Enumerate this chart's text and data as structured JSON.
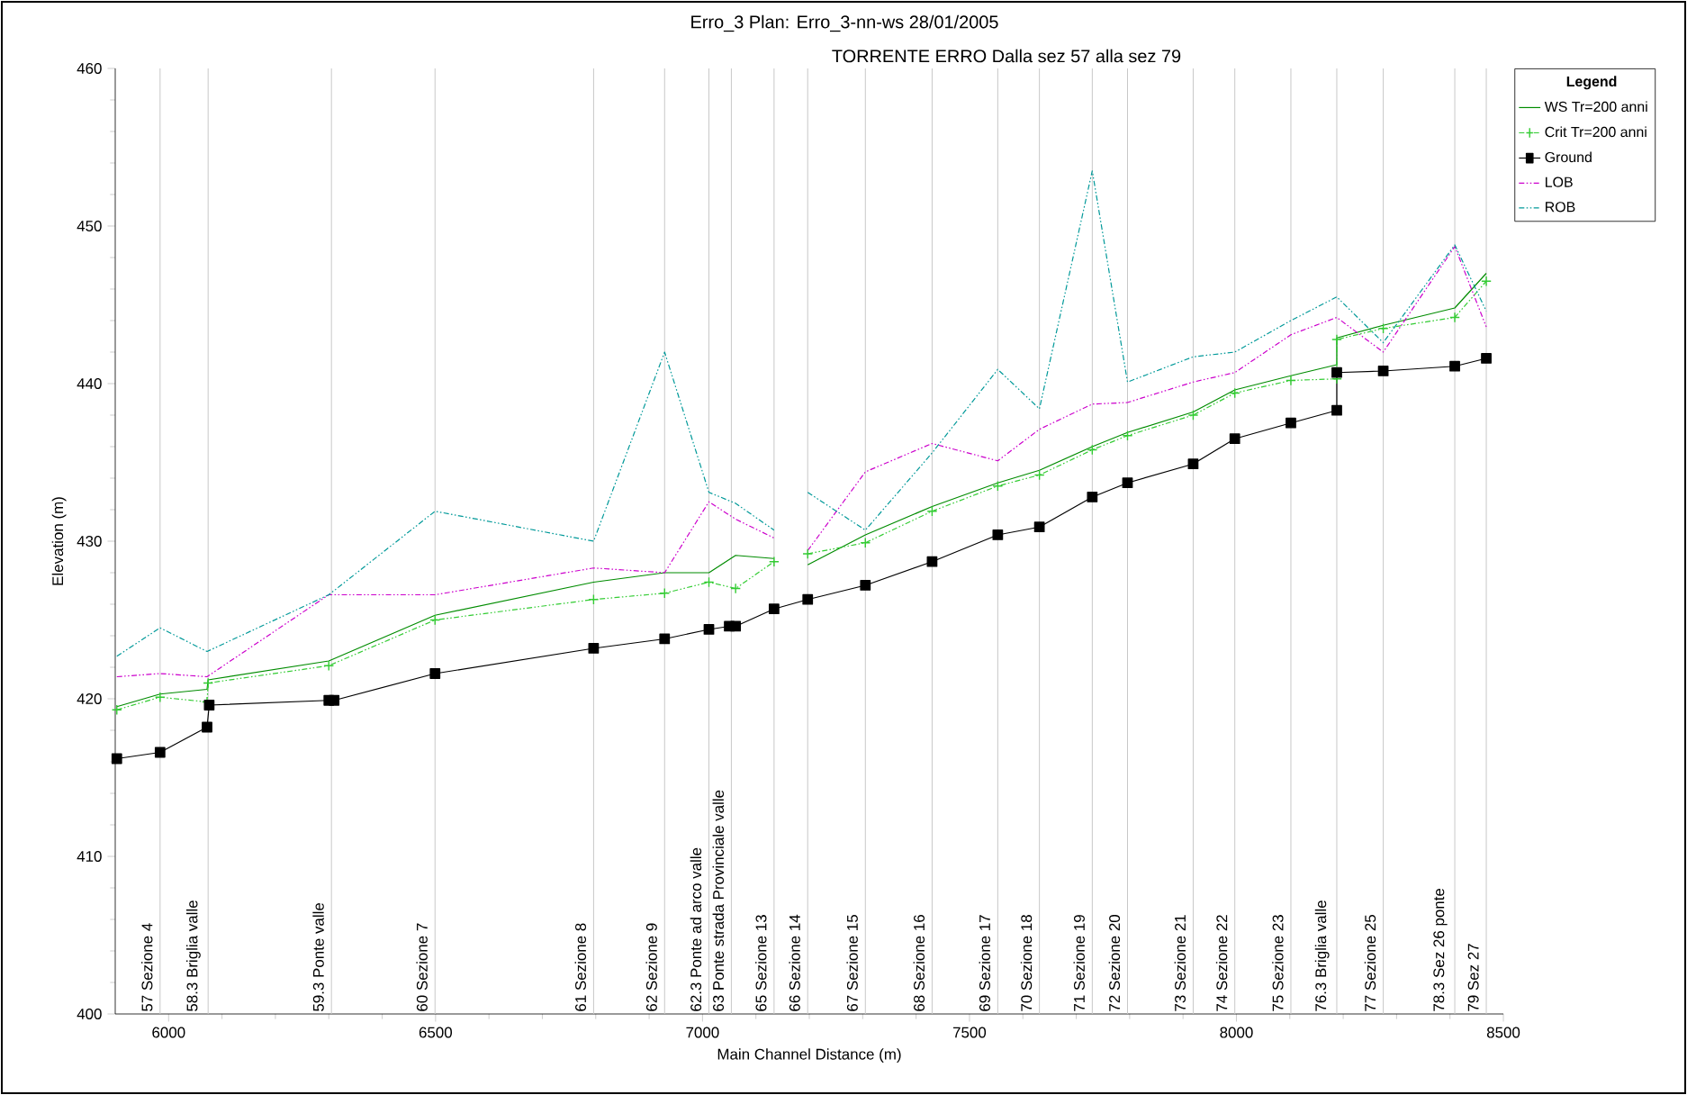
{
  "chart_data": {
    "type": "line",
    "title": "Erro_3       Plan: Erro_3-nn-ws    28/01/2005",
    "subtitle": "TORRENTE ERRO Dalla sez 57 alla sez 79",
    "xlabel": "Main Channel Distance (m)",
    "ylabel": "Elevation (m)",
    "legend_title": "Legend",
    "legend": "top right",
    "xlim": [
      5900,
      8500
    ],
    "ylim": [
      400,
      460
    ],
    "xticks": [
      6000,
      6500,
      7000,
      7500,
      8000,
      8500
    ],
    "yticks": [
      400,
      410,
      420,
      430,
      440,
      450,
      460
    ],
    "series": [
      {
        "name": "WS  Tr=200 anni",
        "color": "#008c00",
        "line_style": "solid",
        "marker": "none",
        "x": [
          5903,
          5984,
          6072,
          6074,
          6300,
          6499,
          6796,
          6929,
          7012,
          7062,
          7134,
          7160,
          7197,
          7305,
          7430,
          7553,
          7631,
          7730,
          7796,
          7919,
          7997,
          8102,
          8188,
          8188,
          8275,
          8409,
          8468
        ],
        "values": [
          419.5,
          420.3,
          420.6,
          421.2,
          422.4,
          425.3,
          427.4,
          428.0,
          428.0,
          429.1,
          428.9,
          null,
          428.5,
          430.4,
          432.2,
          433.7,
          434.5,
          436.0,
          436.9,
          438.2,
          439.6,
          440.5,
          441.2,
          442.9,
          443.7,
          444.8,
          447.0
        ]
      },
      {
        "name": "Crit  Tr=200 anni",
        "color": "#33cc33",
        "line_style": "dashed",
        "marker": "cross",
        "x": [
          5903,
          5984,
          6072,
          6074,
          6300,
          6499,
          6796,
          6929,
          7012,
          7062,
          7134,
          7160,
          7197,
          7305,
          7430,
          7553,
          7631,
          7730,
          7796,
          7919,
          7997,
          8102,
          8188,
          8188,
          8275,
          8409,
          8468
        ],
        "values": [
          419.3,
          420.1,
          419.8,
          421.0,
          422.1,
          425.0,
          426.3,
          426.7,
          427.4,
          427.0,
          428.7,
          null,
          429.2,
          429.9,
          431.9,
          433.5,
          434.2,
          435.8,
          436.7,
          438.0,
          439.4,
          440.2,
          440.3,
          442.8,
          443.5,
          444.2,
          446.5
        ]
      },
      {
        "name": "Ground",
        "color": "#000000",
        "line_style": "solid",
        "marker": "square",
        "x": [
          5903,
          5984,
          6072,
          6076,
          6300,
          6310,
          6499,
          6796,
          6929,
          7012,
          7050,
          7062,
          7134,
          7197,
          7305,
          7430,
          7553,
          7631,
          7730,
          7796,
          7919,
          7997,
          8102,
          8188,
          8188,
          8275,
          8409,
          8468
        ],
        "values": [
          416.2,
          416.6,
          418.2,
          419.6,
          419.9,
          419.9,
          421.6,
          423.2,
          423.8,
          424.4,
          424.6,
          424.6,
          425.7,
          426.3,
          427.2,
          428.7,
          430.4,
          430.9,
          432.8,
          433.7,
          434.9,
          436.5,
          437.5,
          438.3,
          440.7,
          440.8,
          441.1,
          441.6
        ]
      },
      {
        "name": "LOB",
        "color": "#cc00cc",
        "line_style": "dashed",
        "marker": "none",
        "x": [
          5903,
          5984,
          6072,
          6300,
          6499,
          6796,
          6929,
          7012,
          7062,
          7134,
          7160,
          7197,
          7305,
          7430,
          7553,
          7631,
          7730,
          7796,
          7919,
          7997,
          8102,
          8188,
          8275,
          8409,
          8468
        ],
        "values": [
          421.4,
          421.6,
          421.4,
          426.6,
          426.6,
          428.3,
          428.0,
          432.5,
          431.4,
          430.2,
          null,
          429.4,
          434.4,
          436.2,
          435.1,
          437.1,
          438.7,
          438.8,
          440.1,
          440.7,
          443.1,
          444.2,
          442.0,
          448.7,
          443.6
        ]
      },
      {
        "name": "ROB",
        "color": "#009999",
        "line_style": "dashed",
        "marker": "none",
        "x": [
          5903,
          5984,
          6072,
          6300,
          6499,
          6796,
          6929,
          7012,
          7062,
          7134,
          7160,
          7197,
          7305,
          7430,
          7553,
          7631,
          7730,
          7796,
          7919,
          7997,
          8102,
          8188,
          8275,
          8409,
          8468
        ],
        "values": [
          422.7,
          424.5,
          423.0,
          426.6,
          431.9,
          430.0,
          442.0,
          433.1,
          432.4,
          430.7,
          null,
          433.1,
          430.7,
          435.6,
          440.9,
          438.4,
          453.5,
          440.1,
          441.7,
          442.0,
          444.0,
          445.5,
          442.6,
          448.8,
          444.6
        ]
      }
    ],
    "ref_lines": [
      {
        "axis": "x",
        "value": 5984,
        "label": "57 Sezione 4",
        "color": "#c8c8c8"
      },
      {
        "axis": "x",
        "value": 6074,
        "label": "58.3 Briglia valle",
        "color": "#c8c8c8"
      },
      {
        "axis": "x",
        "value": 6305,
        "label": "59.3 Ponte valle",
        "color": "#c8c8c8"
      },
      {
        "axis": "x",
        "value": 6499,
        "label": "60 Sezione 7",
        "color": "#c8c8c8"
      },
      {
        "axis": "x",
        "value": 6796,
        "label": "61 Sezione 8",
        "color": "#c8c8c8"
      },
      {
        "axis": "x",
        "value": 6929,
        "label": "62 Sezione 9",
        "color": "#c8c8c8"
      },
      {
        "axis": "x",
        "value": 7012,
        "label": "62.3 Ponte ad arco valle",
        "color": "#c8c8c8"
      },
      {
        "axis": "x",
        "value": 7054,
        "label": "63 Ponte strada Provinciale valle",
        "color": "#c8c8c8"
      },
      {
        "axis": "x",
        "value": 7134,
        "label": "65 Sezione 13",
        "color": "#c8c8c8"
      },
      {
        "axis": "x",
        "value": 7197,
        "label": "66 Sezione 14",
        "color": "#c8c8c8"
      },
      {
        "axis": "x",
        "value": 7305,
        "label": "67 Sezione 15",
        "color": "#c8c8c8"
      },
      {
        "axis": "x",
        "value": 7430,
        "label": "68 Sezione 16",
        "color": "#c8c8c8"
      },
      {
        "axis": "x",
        "value": 7553,
        "label": "69 Sezione 17",
        "color": "#c8c8c8"
      },
      {
        "axis": "x",
        "value": 7631,
        "label": "70 Sezione 18",
        "color": "#c8c8c8"
      },
      {
        "axis": "x",
        "value": 7730,
        "label": "71 Sezione 19",
        "color": "#c8c8c8"
      },
      {
        "axis": "x",
        "value": 7796,
        "label": "72 Sezione 20",
        "color": "#c8c8c8"
      },
      {
        "axis": "x",
        "value": 7919,
        "label": "73 Sezione 21",
        "color": "#c8c8c8"
      },
      {
        "axis": "x",
        "value": 7997,
        "label": "74 Sezione 22",
        "color": "#c8c8c8"
      },
      {
        "axis": "x",
        "value": 8102,
        "label": "75 Sezione 23",
        "color": "#c8c8c8"
      },
      {
        "axis": "x",
        "value": 8188,
        "label": "76.3 Briglia valle",
        "color": "#c8c8c8"
      },
      {
        "axis": "x",
        "value": 8275,
        "label": "77 Sezione 25",
        "color": "#c8c8c8"
      },
      {
        "axis": "x",
        "value": 8409,
        "label": "78.3 Sez 26 ponte",
        "color": "#c8c8c8"
      },
      {
        "axis": "x",
        "value": 8468,
        "label": "79 Sez 27",
        "color": "#c8c8c8"
      }
    ]
  }
}
